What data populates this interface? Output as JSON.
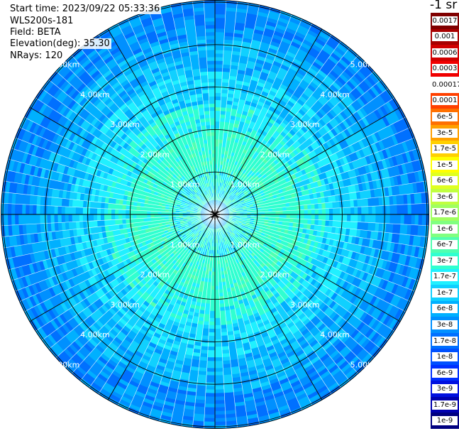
{
  "info": {
    "start_time": "Start time: 2023/09/22 05:33:36",
    "instrument": "WLS200s-181",
    "field": "Field: BETA",
    "elevation": "Elevation(deg): 35.30",
    "nrays": "NRays: 120"
  },
  "colorbar": {
    "unit": "-1 sr",
    "labels": [
      "0.0017",
      "0.001",
      "0.0006",
      "0.0003",
      "0.00017",
      "0.0001",
      "6e-5",
      "3e-5",
      "1.7e-5",
      "1e-5",
      "6e-6",
      "3e-6",
      "1.7e-6",
      "1e-6",
      "6e-7",
      "3e-7",
      "1.7e-7",
      "1e-7",
      "6e-8",
      "3e-8",
      "1.7e-8",
      "1e-8",
      "6e-9",
      "3e-9",
      "1.7e-9",
      "1e-9"
    ],
    "colors": [
      "#800000",
      "#a80000",
      "#d00000",
      "#f00000",
      "#ffffff",
      "#ff4000",
      "#ff7000",
      "#ffa000",
      "#ffd000",
      "#ffff00",
      "#e0ff20",
      "#c0ff40",
      "#a0ff60",
      "#80ff80",
      "#50ffb0",
      "#30ffd0",
      "#20f0ff",
      "#10d0ff",
      "#00b0ff",
      "#0090ff",
      "#0070ff",
      "#0050ff",
      "#0030ff",
      "#0010e0",
      "#0000b0",
      "#000080"
    ]
  },
  "chart_data": {
    "type": "heatmap",
    "projection": "polar PPI",
    "field": "BETA",
    "rays": 120,
    "max_range_km": 5.0,
    "range_rings_km": [
      1.0,
      2.0,
      3.0,
      4.0,
      5.0
    ],
    "ring_labels": [
      "1.00km",
      "2.00km",
      "3.00km",
      "4.00km",
      "5.00km"
    ],
    "azimuth_lines_deg": [
      0,
      30,
      60,
      90,
      120,
      150,
      180,
      210,
      240,
      270,
      300,
      330
    ],
    "beta_by_range": [
      {
        "range_km": 0.3,
        "beta": "1e-7"
      },
      {
        "range_km": 1.0,
        "beta": "1.7e-7"
      },
      {
        "range_km": 2.0,
        "beta": "2e-7"
      },
      {
        "range_km": 3.0,
        "beta": "1e-7"
      },
      {
        "range_km": 4.0,
        "beta": "5e-8"
      },
      {
        "range_km": 5.0,
        "beta": "2e-8"
      }
    ]
  }
}
